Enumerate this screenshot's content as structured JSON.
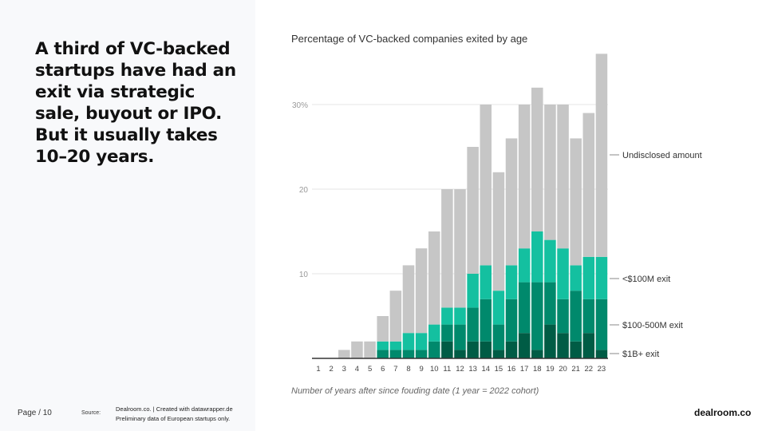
{
  "headline": "A third of VC-backed startups have had an exit via strategic sale, buyout or IPO. But it usually takes 10–20 years.",
  "footer": {
    "page": "Page / 10",
    "source_label": "Source:",
    "source": "Dealroom.co. | Created with datawrapper.de",
    "note": "Preliminary data of European startups only.",
    "brand": "dealroom.co"
  },
  "chart_data": {
    "type": "bar",
    "stacked": true,
    "title": "Percentage of VC-backed companies exited by age",
    "xlabel": "Number of years after since fouding date (1 year = 2022 cohort)",
    "ylabel": "",
    "ylim": [
      0,
      36
    ],
    "yticks": [
      10,
      20,
      30
    ],
    "ytick_labels": [
      "10",
      "20",
      "30%"
    ],
    "grid": true,
    "legend": "right, inline labels",
    "categories": [
      "1",
      "2",
      "3",
      "4",
      "5",
      "6",
      "7",
      "8",
      "9",
      "10",
      "11",
      "12",
      "13",
      "14",
      "15",
      "16",
      "17",
      "18",
      "19",
      "20",
      "21",
      "22",
      "23"
    ],
    "series": [
      {
        "name": "$1B+ exit",
        "color": "#005c45",
        "values": [
          0,
          0,
          0,
          0,
          0,
          0,
          0,
          0,
          0,
          0,
          2,
          1,
          2,
          2,
          1,
          2,
          3,
          1,
          4,
          3,
          2,
          3,
          1
        ]
      },
      {
        "name": "$100-500M exit",
        "color": "#00896c",
        "values": [
          0,
          0,
          0,
          0,
          0,
          1,
          1,
          1,
          1,
          2,
          2,
          3,
          4,
          5,
          3,
          5,
          6,
          8,
          5,
          4,
          6,
          4,
          6
        ]
      },
      {
        "name": "<$100M exit",
        "color": "#14c0a0",
        "values": [
          0,
          0,
          0,
          0,
          0,
          1,
          1,
          2,
          2,
          2,
          2,
          2,
          4,
          4,
          4,
          4,
          4,
          6,
          5,
          6,
          3,
          5,
          5
        ]
      },
      {
        "name": "Undisclosed amount",
        "color": "#c6c6c6",
        "values": [
          0,
          0,
          1,
          2,
          2,
          3,
          6,
          8,
          10,
          11,
          14,
          14,
          15,
          19,
          14,
          15,
          17,
          17,
          16,
          17,
          15,
          17,
          24
        ]
      }
    ]
  }
}
